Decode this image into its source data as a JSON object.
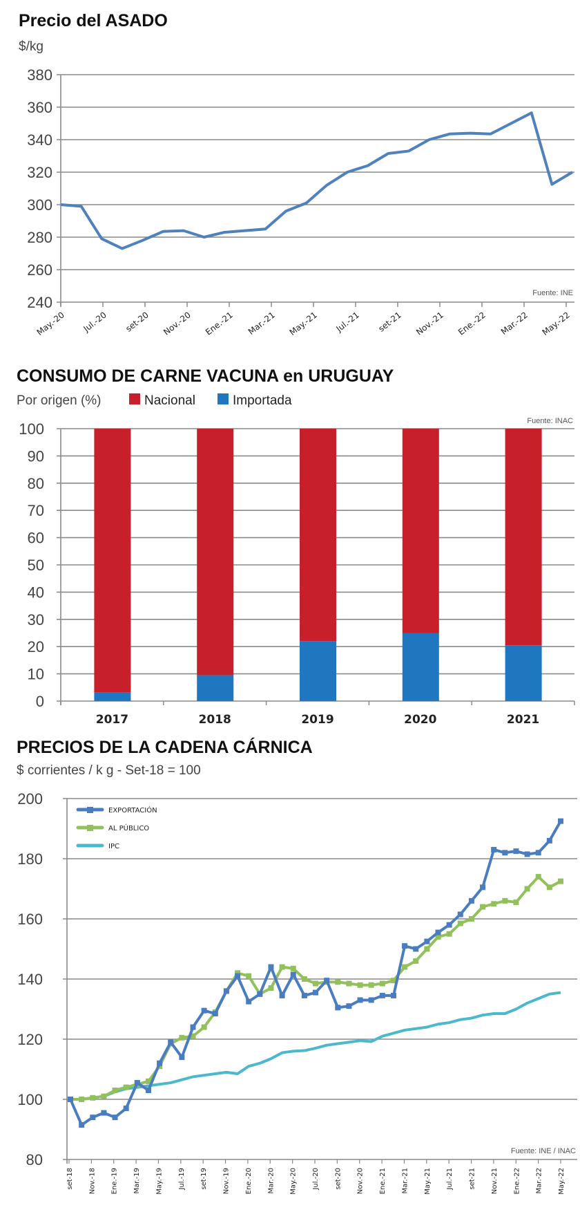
{
  "chart_data": [
    {
      "type": "line",
      "title": "Precio del ASADO",
      "ylabel": "$/kg",
      "source": "Fuente: INE",
      "ylim": [
        240,
        380
      ],
      "yticks": [
        240,
        260,
        280,
        300,
        320,
        340,
        360,
        380
      ],
      "xtick_labels": [
        "May.-20",
        "Jul.-20",
        "set-20",
        "Nov.-20",
        "Ene.-21",
        "Mar.-21",
        "May.-21",
        "Jul.-21",
        "set-21",
        "Nov.-21",
        "Ene.-22",
        "Mar.-22",
        "May.-22"
      ],
      "grid": true,
      "color": "#4f81bd",
      "values": [
        300,
        299,
        279,
        273,
        278,
        283.5,
        284,
        280,
        283,
        284,
        285,
        296,
        301,
        312,
        320,
        324,
        331.5,
        333,
        340,
        343.5,
        344,
        343.5,
        350,
        356.5,
        312.5,
        320
      ]
    },
    {
      "type": "bar",
      "stacked": true,
      "title": "CONSUMO DE CARNE VACUNA en URUGUAY",
      "subtitle": "Por origen (%)",
      "source": "Fuente: INAC",
      "ylim": [
        0,
        100
      ],
      "yticks": [
        0,
        10,
        20,
        30,
        40,
        50,
        60,
        70,
        80,
        90,
        100
      ],
      "categories": [
        "2017",
        "2018",
        "2019",
        "2020",
        "2021"
      ],
      "legend": "top-left",
      "series": [
        {
          "name": "Nacional",
          "color": "#c8202a",
          "values": [
            96.8,
            90.5,
            78,
            75,
            79.5
          ]
        },
        {
          "name": "Importada",
          "color": "#1f77c0",
          "values": [
            3.2,
            9.5,
            22,
            25,
            20.5
          ]
        }
      ]
    },
    {
      "type": "line",
      "title": "PRECIOS DE LA CADENA CÁRNICA",
      "subtitle": "$ corrientes / k g - Set-18 = 100",
      "source": "Fuente: INE / INAC",
      "ylim": [
        80,
        200
      ],
      "yticks": [
        80,
        100,
        120,
        140,
        160,
        180,
        200
      ],
      "grid": true,
      "legend": "top-left",
      "xtick_labels": [
        "set-18",
        "Nov.-18",
        "Ene.-19",
        "Mar.-19",
        "May.-19",
        "Jul.-19",
        "set-19",
        "Nov.-19",
        "Ene.-20",
        "Mar.-20",
        "May.-20",
        "Jul.-20",
        "set-20",
        "Nov.-20",
        "Ene.-21",
        "Mar.-21",
        "May.-21",
        "Jul.-21",
        "set-21",
        "Nov.-21",
        "Ene.-22",
        "Mar.-22",
        "May.-22"
      ],
      "series": [
        {
          "name": "EXPORTACIÓN",
          "color": "#4a7dc0",
          "markers": true,
          "values": [
            100,
            91.5,
            94,
            95.5,
            94,
            97,
            105.5,
            103,
            112,
            119,
            114,
            124,
            129.5,
            128.5,
            136,
            141,
            132.5,
            135,
            144,
            134.5,
            141.5,
            134.5,
            135.5,
            139.5,
            130.5,
            131,
            133,
            133,
            134.5,
            134.5,
            151,
            150,
            152.5,
            155.5,
            158,
            161.5,
            166,
            170.5,
            183,
            182,
            182.5,
            181.5,
            182,
            186,
            192.5
          ]
        },
        {
          "name": "AL PÚBLICO",
          "color": "#92c05a",
          "markers": true,
          "values": [
            100,
            100,
            100.5,
            101,
            103,
            104,
            105,
            106,
            111,
            118.5,
            120.5,
            121,
            124,
            129,
            136,
            142,
            141,
            135,
            137,
            144,
            143.5,
            140,
            138.5,
            139,
            139,
            138.5,
            138,
            138,
            138.5,
            139.5,
            144,
            146,
            150,
            154,
            155,
            158.5,
            160,
            164,
            165,
            166,
            165.5,
            170,
            174,
            170.5,
            172.5
          ]
        },
        {
          "name": "IPC",
          "color": "#4bb8cc",
          "markers": false,
          "values": [
            100,
            100,
            100.5,
            101,
            102.5,
            103.5,
            104,
            104.5,
            105,
            105.5,
            106.5,
            107.5,
            108,
            108.5,
            109,
            108.5,
            111,
            112,
            113.5,
            115.5,
            116,
            116.2,
            117,
            118,
            118.5,
            119,
            119.5,
            119.2,
            121,
            122,
            123,
            123.5,
            124,
            125,
            125.5,
            126.5,
            127,
            128,
            128.5,
            128.5,
            130,
            132,
            133.5,
            135,
            135.5
          ]
        }
      ]
    }
  ]
}
